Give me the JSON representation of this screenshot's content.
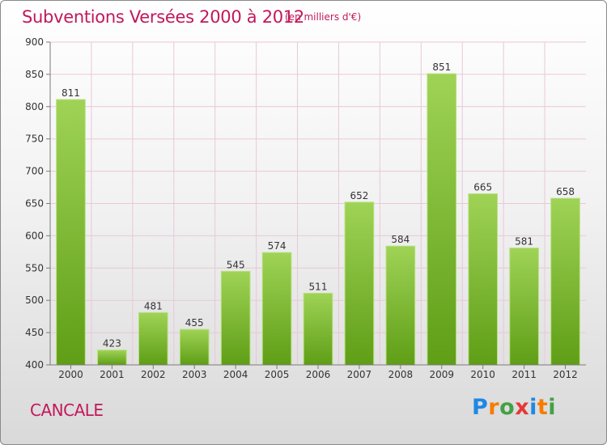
{
  "header": {
    "title": "Subventions Versées 2000 à 2012",
    "subtitle": "(en milliers d'€)"
  },
  "footer": {
    "city": "CANCALE",
    "logo": "Proxiti"
  },
  "colors": {
    "title": "#c2185b",
    "bar_top": "#9fd356",
    "bar_bottom": "#5f9e16",
    "grid": "#e8c8d8",
    "axis": "#7a7a7a"
  },
  "chart_data": {
    "type": "bar",
    "title": "Subventions Versées 2000 à 2012",
    "subtitle": "(en milliers d'€)",
    "xlabel": "",
    "ylabel": "",
    "categories": [
      "2000",
      "2001",
      "2002",
      "2003",
      "2004",
      "2005",
      "2006",
      "2007",
      "2008",
      "2009",
      "2010",
      "2011",
      "2012"
    ],
    "values": [
      811,
      423,
      481,
      455,
      545,
      574,
      511,
      652,
      584,
      851,
      665,
      581,
      658
    ],
    "ylim": [
      400,
      900
    ],
    "yticks": [
      400,
      450,
      500,
      550,
      600,
      650,
      700,
      750,
      800,
      850,
      900
    ],
    "grid": true,
    "legend": "none"
  }
}
